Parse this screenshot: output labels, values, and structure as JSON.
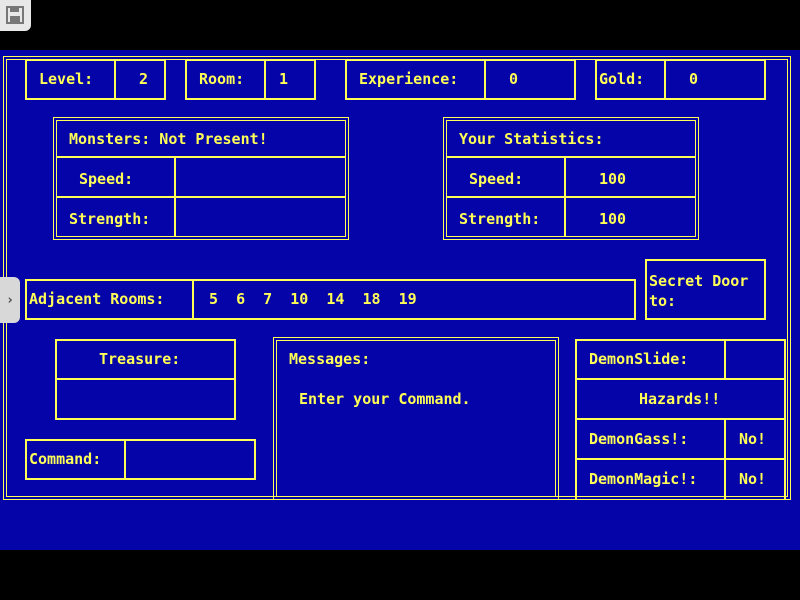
{
  "top": {
    "level_label": "Level:",
    "level": "2",
    "room_label": "Room:",
    "room": "1",
    "exp_label": "Experience:",
    "exp": "0",
    "gold_label": "Gold:",
    "gold": "0"
  },
  "monsters": {
    "title": "Monsters: Not Present!",
    "speed_label": "Speed:",
    "speed": "",
    "strength_label": "Strength:",
    "strength": ""
  },
  "stats": {
    "title": "Your Statistics:",
    "speed_label": "Speed:",
    "speed": "100",
    "strength_label": "Strength:",
    "strength": "100"
  },
  "adjacent": {
    "label": "Adjacent Rooms:",
    "rooms": "5  6  7  10  14  18  19"
  },
  "secret": {
    "label": "Secret Door\nto:"
  },
  "treasure": {
    "label": "Treasure:",
    "value": ""
  },
  "command": {
    "label": "Command:",
    "value": ""
  },
  "messages": {
    "label": "Messages:",
    "text": "Enter your Command."
  },
  "hazards": {
    "demonslide_label": "DemonSlide:",
    "demonslide": "",
    "title": "Hazards!!",
    "gass_label": "DemonGass!:",
    "gass": "No!",
    "magic_label": "DemonMagic!:",
    "magic": "No!"
  },
  "colors": {
    "background": "#0404a8",
    "text": "#ffff55"
  },
  "icons": {
    "save": "floppy-disk-icon",
    "sidebar": "chevron-right-icon"
  }
}
